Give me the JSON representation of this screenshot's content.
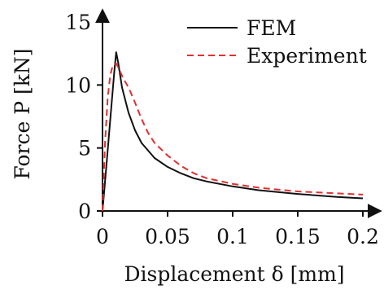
{
  "chart_data": {
    "type": "line",
    "title": "",
    "xlabel": "Displacement δ [mm]",
    "ylabel": "Force P [kN]",
    "xlim": [
      0,
      0.2
    ],
    "ylim": [
      0,
      15
    ],
    "xticks": [
      0,
      0.05,
      0.1,
      0.15,
      0.2
    ],
    "xtick_labels": [
      "0",
      "0.05",
      "0.1",
      "0.15",
      "0.2"
    ],
    "yticks": [
      0,
      5,
      10,
      15
    ],
    "ytick_labels": [
      "0",
      "5",
      "10",
      "15"
    ],
    "grid": false,
    "legend_position": "top-right",
    "series": [
      {
        "name": "FEM",
        "color": "#111111",
        "style": "solid",
        "x": [
          0,
          0.003,
          0.006,
          0.009,
          0.0105,
          0.012,
          0.015,
          0.02,
          0.025,
          0.03,
          0.04,
          0.05,
          0.06,
          0.07,
          0.08,
          0.1,
          0.12,
          0.15,
          0.18,
          0.2
        ],
        "y": [
          0,
          3.6,
          7.3,
          11.0,
          12.6,
          11.8,
          9.8,
          7.8,
          6.4,
          5.4,
          4.2,
          3.5,
          3.0,
          2.6,
          2.35,
          1.95,
          1.65,
          1.35,
          1.12,
          1.0
        ]
      },
      {
        "name": "Experiment",
        "color": "#e03030",
        "style": "dashed",
        "x": [
          0,
          0.002,
          0.004,
          0.006,
          0.008,
          0.0105,
          0.013,
          0.016,
          0.02,
          0.025,
          0.03,
          0.035,
          0.04,
          0.05,
          0.06,
          0.07,
          0.08,
          0.1,
          0.12,
          0.15,
          0.18,
          0.2
        ],
        "y": [
          0,
          5.5,
          9.0,
          10.8,
          11.6,
          11.7,
          11.2,
          10.5,
          9.8,
          8.6,
          7.3,
          6.2,
          5.4,
          4.4,
          3.6,
          3.0,
          2.6,
          2.15,
          1.85,
          1.55,
          1.4,
          1.3
        ]
      }
    ]
  }
}
